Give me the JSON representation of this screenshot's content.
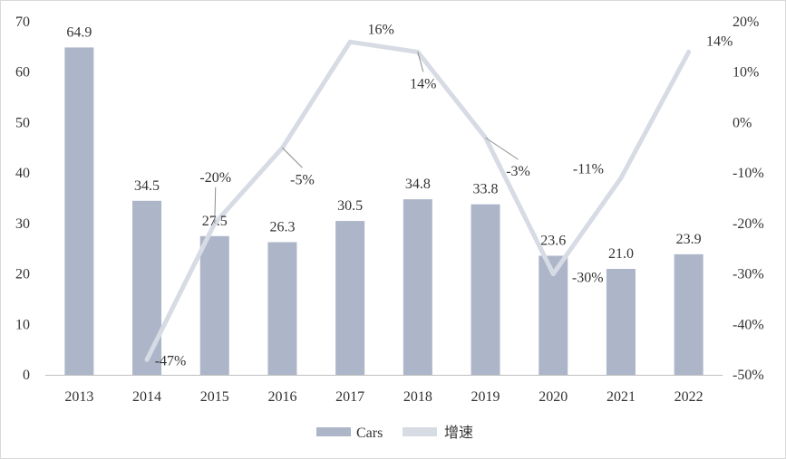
{
  "chart_data": {
    "type": "bar+line",
    "categories": [
      "2013",
      "2014",
      "2015",
      "2016",
      "2017",
      "2018",
      "2019",
      "2020",
      "2021",
      "2022"
    ],
    "series": [
      {
        "name": "Cars",
        "type": "bar",
        "axis": "left",
        "values": [
          64.9,
          34.5,
          27.5,
          26.3,
          30.5,
          34.8,
          33.8,
          23.6,
          21.0,
          23.9
        ],
        "labels": [
          "64.9",
          "34.5",
          "27.5",
          "26.3",
          "30.5",
          "34.8",
          "33.8",
          "23.6",
          "21.0",
          "23.9"
        ],
        "color": "#adb5c9"
      },
      {
        "name": "增速",
        "type": "line",
        "axis": "right",
        "values": [
          null,
          -47,
          -20,
          -5,
          16,
          14,
          -3,
          -30,
          -11,
          14
        ],
        "labels": [
          "",
          "-47%",
          "-20%",
          "-5%",
          "16%",
          "14%",
          "-3%",
          "-30%",
          "-11%",
          "14%"
        ],
        "color": "#d6dbe4"
      }
    ],
    "yleft": {
      "min": 0,
      "max": 70,
      "step": 10,
      "ticks": [
        "0",
        "10",
        "20",
        "30",
        "40",
        "50",
        "60",
        "70"
      ]
    },
    "yright": {
      "min": -50,
      "max": 20,
      "step": 10,
      "ticks": [
        "-50%",
        "-40%",
        "-30%",
        "-20%",
        "-10%",
        "0%",
        "10%",
        "20%"
      ]
    },
    "grid": false,
    "legend": "bottom"
  }
}
